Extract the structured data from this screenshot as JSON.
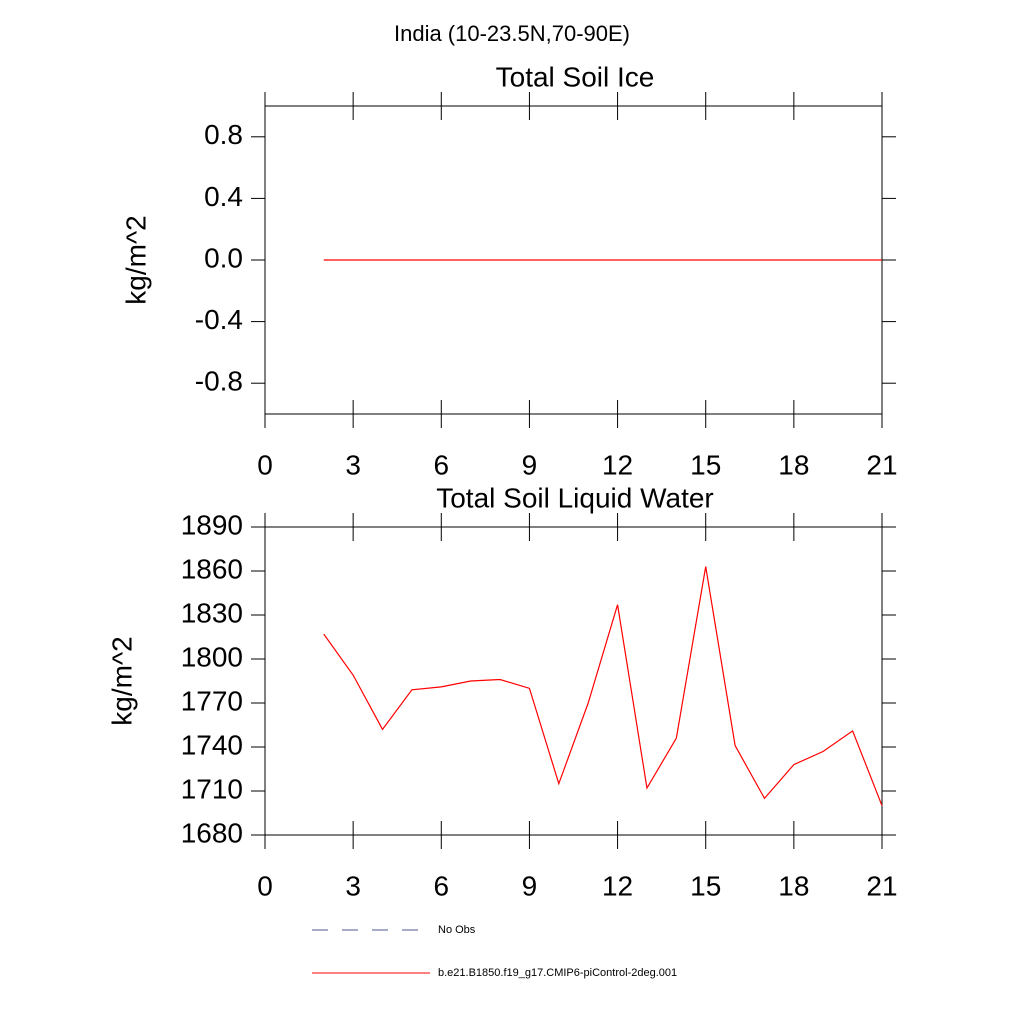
{
  "title": "India (10-23.5N,70-90E)",
  "chart_data": [
    {
      "type": "line",
      "title": "Total Soil Ice",
      "y_label": "kg/m^2",
      "x": [
        2,
        3,
        4,
        5,
        6,
        7,
        8,
        9,
        10,
        11,
        12,
        13,
        14,
        15,
        16,
        17,
        18,
        19,
        20,
        21
      ],
      "series": [
        {
          "color": "#ff0000",
          "values": [
            0,
            0,
            0,
            0,
            0,
            0,
            0,
            0,
            0,
            0,
            0,
            0,
            0,
            0,
            0,
            0,
            0,
            0,
            0,
            0
          ]
        }
      ],
      "xlim": [
        0,
        21
      ],
      "xticks": [
        0,
        3,
        6,
        9,
        12,
        15,
        18,
        21
      ],
      "ylim": [
        -1,
        1
      ],
      "yticks": [
        -0.8,
        -0.4,
        {
          "value": 0,
          "label": "0.0"
        },
        0.4,
        0.8
      ]
    },
    {
      "type": "line",
      "title": "Total Soil Liquid Water",
      "y_label": "kg/m^2",
      "x": [
        2,
        3,
        4,
        5,
        6,
        7,
        8,
        9,
        10,
        11,
        12,
        13,
        14,
        15,
        16,
        17,
        18,
        19,
        20,
        21
      ],
      "series": [
        {
          "color": "#ff0000",
          "values": [
            1817,
            1789,
            1752,
            1779,
            1781,
            1785,
            1786,
            1780,
            1715,
            1770,
            1837,
            1712,
            1746,
            1863,
            1741,
            1705,
            1728,
            1737,
            1751,
            1700
          ]
        }
      ],
      "xlim": [
        0,
        21
      ],
      "xticks": [
        0,
        3,
        6,
        9,
        12,
        15,
        18,
        21
      ],
      "ylim": [
        1680,
        1890
      ],
      "yticks": [
        1680,
        1710,
        1740,
        1770,
        1800,
        1830,
        1860,
        1890
      ]
    }
  ],
  "legend": [
    {
      "name": "No Obs",
      "color": "#4d5a8c",
      "dashed": true
    },
    {
      "name": "b.e21.B1850.f19_g17.CMIP6-piControl-2deg.001",
      "color": "#ff0000",
      "dashed": false
    }
  ]
}
